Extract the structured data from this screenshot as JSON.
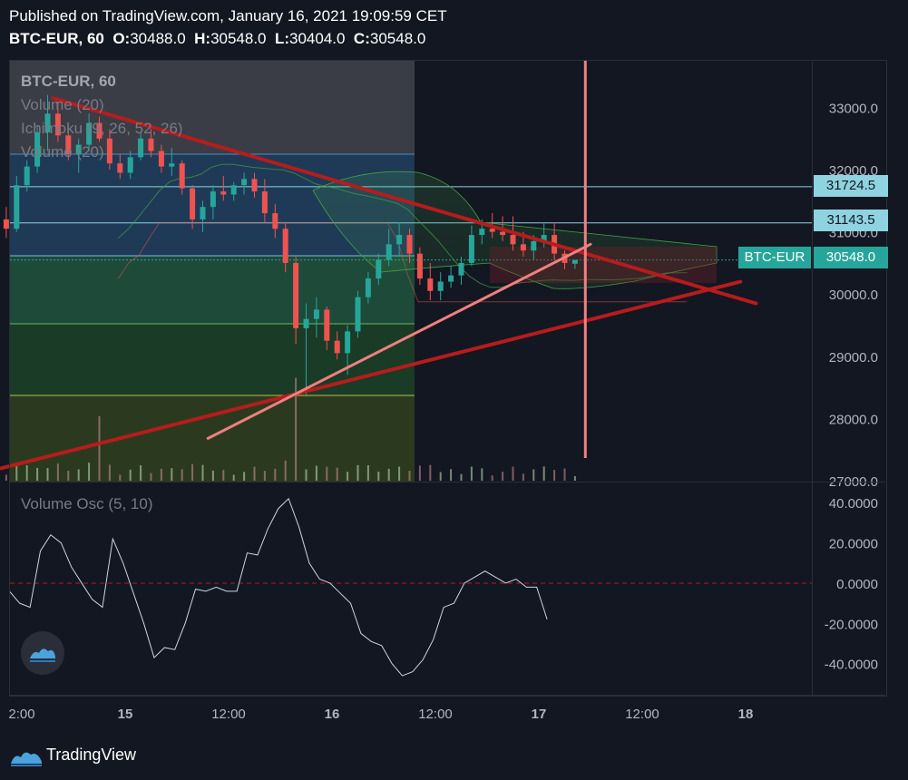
{
  "header": {
    "published": "Published on TradingView.com, January 16, 2021 19:09:59 CET",
    "symbol_interval": "BTC-EUR, 60",
    "o_label": "O:",
    "o_value": "30488.0",
    "h_label": "H:",
    "h_value": "30548.0",
    "l_label": "L:",
    "l_value": "30404.0",
    "c_label": "C:",
    "c_value": "30548.0"
  },
  "legend": {
    "symbol": "BTC-EUR, 60",
    "volume": "Volume (20)",
    "ichimoku": "Ichimoku (9, 26, 52, 26)",
    "volume2": "Volume (20)",
    "osc": "Volume Osc (5, 10)"
  },
  "price_tags": {
    "level1": "31724.5",
    "level2": "31143.5",
    "symbol": "BTC-EUR",
    "last": "30548.0"
  },
  "footer": {
    "brand": "TradingView"
  },
  "colors": {
    "background": "#131722",
    "up": "#26a69a",
    "down": "#ef5350",
    "trend_dark": "#b71c1c",
    "trend_light": "#f08080",
    "level_line": "#8fd3e0"
  },
  "icons": [
    "tradingview-logo-icon"
  ],
  "chart_data": [
    {
      "type": "candlestick",
      "symbol": "BTC-EUR",
      "interval": "60",
      "yticks": [
        27000,
        28000,
        29000,
        30000,
        31000,
        32000,
        33000
      ],
      "ytick_labels": [
        "27000.0",
        "28000.0",
        "29000.0",
        "30000.0",
        "31000.0",
        "32000.0",
        "33000.0"
      ],
      "ylim": [
        27000,
        33750
      ],
      "xtick_labels": [
        "2:00",
        "15",
        "12:00",
        "16",
        "12:00",
        "17",
        "12:00",
        "18"
      ],
      "xlim_hours": [
        -2,
        82
      ],
      "xticks_hours": [
        0,
        10,
        20,
        30,
        40,
        50,
        60,
        70
      ],
      "last_price": 30548.0,
      "horizontal_levels": [
        31724.5,
        31143.5
      ],
      "candles": [
        {
          "o": 31200,
          "h": 31400,
          "l": 30900,
          "c": 31050
        },
        {
          "o": 31050,
          "h": 31900,
          "l": 31000,
          "c": 31750
        },
        {
          "o": 31750,
          "h": 32150,
          "l": 31650,
          "c": 32050
        },
        {
          "o": 32050,
          "h": 32700,
          "l": 31950,
          "c": 32600
        },
        {
          "o": 32600,
          "h": 33200,
          "l": 32300,
          "c": 32900
        },
        {
          "o": 32900,
          "h": 33100,
          "l": 32450,
          "c": 32550
        },
        {
          "o": 32550,
          "h": 32700,
          "l": 32150,
          "c": 32250
        },
        {
          "o": 32250,
          "h": 32500,
          "l": 31950,
          "c": 32400
        },
        {
          "o": 32400,
          "h": 32900,
          "l": 32300,
          "c": 32750
        },
        {
          "o": 32750,
          "h": 32850,
          "l": 32450,
          "c": 32500
        },
        {
          "o": 32500,
          "h": 32650,
          "l": 32000,
          "c": 32100
        },
        {
          "o": 32100,
          "h": 32250,
          "l": 31850,
          "c": 31950
        },
        {
          "o": 31950,
          "h": 32300,
          "l": 31850,
          "c": 32200
        },
        {
          "o": 32200,
          "h": 32600,
          "l": 32150,
          "c": 32500
        },
        {
          "o": 32500,
          "h": 32650,
          "l": 32200,
          "c": 32300
        },
        {
          "o": 32300,
          "h": 32400,
          "l": 31950,
          "c": 32050
        },
        {
          "o": 32050,
          "h": 32350,
          "l": 31900,
          "c": 32100
        },
        {
          "o": 32100,
          "h": 32150,
          "l": 31600,
          "c": 31700
        },
        {
          "o": 31700,
          "h": 31750,
          "l": 31050,
          "c": 31200
        },
        {
          "o": 31200,
          "h": 31500,
          "l": 31000,
          "c": 31400
        },
        {
          "o": 31400,
          "h": 31750,
          "l": 31200,
          "c": 31650
        },
        {
          "o": 31650,
          "h": 31900,
          "l": 31500,
          "c": 31600
        },
        {
          "o": 31600,
          "h": 31800,
          "l": 31500,
          "c": 31750
        },
        {
          "o": 31750,
          "h": 31950,
          "l": 31600,
          "c": 31850
        },
        {
          "o": 31850,
          "h": 31950,
          "l": 31550,
          "c": 31650
        },
        {
          "o": 31650,
          "h": 31850,
          "l": 31150,
          "c": 31300
        },
        {
          "o": 31300,
          "h": 31450,
          "l": 30900,
          "c": 31050
        },
        {
          "o": 31050,
          "h": 31150,
          "l": 30350,
          "c": 30500
        },
        {
          "o": 30500,
          "h": 30600,
          "l": 29200,
          "c": 29450
        },
        {
          "o": 29450,
          "h": 29850,
          "l": 28350,
          "c": 29600
        },
        {
          "o": 29600,
          "h": 29950,
          "l": 29300,
          "c": 29750
        },
        {
          "o": 29750,
          "h": 29800,
          "l": 29100,
          "c": 29250
        },
        {
          "o": 29250,
          "h": 29400,
          "l": 28950,
          "c": 29050
        },
        {
          "o": 29050,
          "h": 29500,
          "l": 28700,
          "c": 29400
        },
        {
          "o": 29400,
          "h": 30050,
          "l": 29300,
          "c": 29950
        },
        {
          "o": 29950,
          "h": 30350,
          "l": 29850,
          "c": 30250
        },
        {
          "o": 30250,
          "h": 30650,
          "l": 30150,
          "c": 30550
        },
        {
          "o": 30550,
          "h": 31050,
          "l": 30450,
          "c": 30800
        },
        {
          "o": 30800,
          "h": 31150,
          "l": 30600,
          "c": 30950
        },
        {
          "o": 30950,
          "h": 31050,
          "l": 30500,
          "c": 30650
        },
        {
          "o": 30650,
          "h": 30750,
          "l": 30150,
          "c": 30250
        },
        {
          "o": 30250,
          "h": 30500,
          "l": 29900,
          "c": 30050
        },
        {
          "o": 30050,
          "h": 30350,
          "l": 29900,
          "c": 30200
        },
        {
          "o": 30200,
          "h": 30450,
          "l": 30100,
          "c": 30300
        },
        {
          "o": 30300,
          "h": 30600,
          "l": 30150,
          "c": 30500
        },
        {
          "o": 30500,
          "h": 31100,
          "l": 30450,
          "c": 30950
        },
        {
          "o": 30950,
          "h": 31200,
          "l": 30800,
          "c": 31050
        },
        {
          "o": 31050,
          "h": 31300,
          "l": 30900,
          "c": 31000
        },
        {
          "o": 31000,
          "h": 31250,
          "l": 30850,
          "c": 30950
        },
        {
          "o": 30950,
          "h": 31250,
          "l": 30700,
          "c": 30800
        },
        {
          "o": 30800,
          "h": 31000,
          "l": 30600,
          "c": 30700
        },
        {
          "o": 30700,
          "h": 30950,
          "l": 30550,
          "c": 30850
        },
        {
          "o": 30850,
          "h": 31150,
          "l": 30750,
          "c": 30950
        },
        {
          "o": 30950,
          "h": 31150,
          "l": 30550,
          "c": 30650
        },
        {
          "o": 30650,
          "h": 30700,
          "l": 30400,
          "c": 30500
        },
        {
          "o": 30488,
          "h": 30548,
          "l": 30404,
          "c": 30548
        }
      ],
      "trendlines": [
        {
          "name": "descending-resistance",
          "from": [
            3,
            33150
          ],
          "to": [
            71,
            29850
          ]
        },
        {
          "name": "ascending-support",
          "from": [
            -2,
            27200
          ],
          "to": [
            69.5,
            30200
          ]
        },
        {
          "name": "short-term-support",
          "from": [
            18,
            27680
          ],
          "to": [
            55,
            30800
          ]
        }
      ],
      "vertical_marker_hour": 54.5
    },
    {
      "type": "line",
      "name": "Volume Osc (5, 10)",
      "yticks": [
        -40,
        -20,
        0,
        20,
        40
      ],
      "ytick_labels": [
        "-40.0000",
        "-20.0000",
        "0.0000",
        "20.0000",
        "40.0000"
      ],
      "ylim": [
        -55,
        50
      ],
      "zero_line": 0,
      "values": [
        -4,
        -10,
        -12,
        16,
        24,
        20,
        8,
        0,
        -8,
        -12,
        22,
        10,
        -5,
        -20,
        -37,
        -32,
        -33,
        -20,
        -3,
        -4,
        -2,
        -4,
        -4,
        15,
        14,
        27,
        37,
        42,
        28,
        10,
        2,
        0,
        -5,
        -10,
        -25,
        -29,
        -31,
        -40,
        -46,
        -44,
        -38,
        -28,
        -12,
        -10,
        0,
        3,
        6,
        3,
        0,
        2,
        -2,
        -2,
        -18
      ]
    }
  ]
}
